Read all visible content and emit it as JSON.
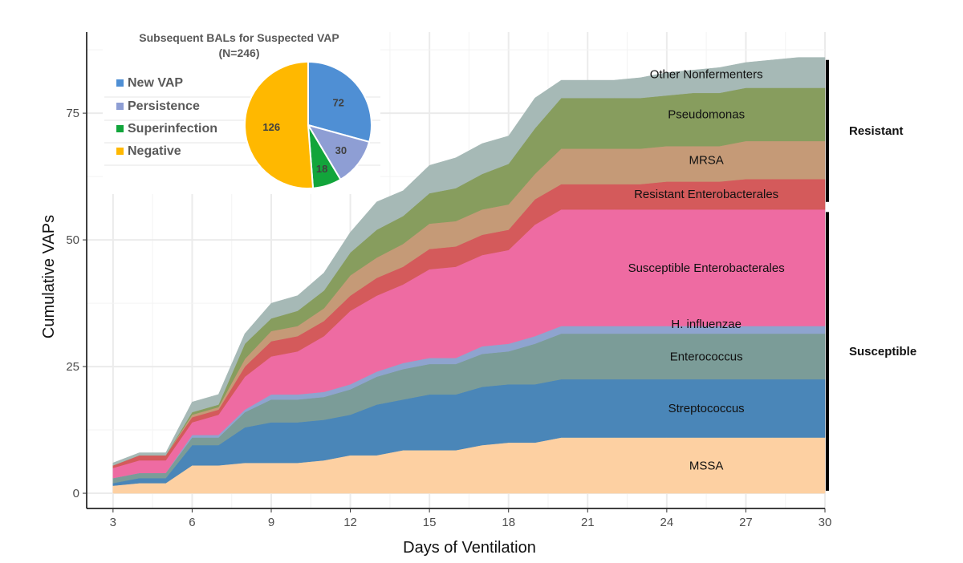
{
  "chart_data": [
    {
      "type": "area",
      "stacked": true,
      "xlabel": "Days of Ventilation",
      "ylabel": "Cumulative VAPs",
      "xlim": [
        2,
        30
      ],
      "ylim": [
        -3,
        91
      ],
      "xticks": [
        3,
        6,
        9,
        12,
        15,
        18,
        21,
        24,
        27,
        30
      ],
      "yticks": [
        0,
        25,
        50,
        75
      ],
      "grid": true,
      "x": [
        3,
        4,
        5,
        6,
        7,
        8,
        9,
        10,
        11,
        12,
        13,
        14,
        15,
        16,
        17,
        18,
        19,
        20,
        21,
        22,
        23,
        24,
        25,
        26,
        27,
        28,
        29,
        30
      ],
      "series": [
        {
          "name": "MSSA",
          "color": "#fdd0a2",
          "values": [
            1.5,
            2,
            2,
            5.5,
            5.5,
            6,
            6,
            6,
            6.5,
            7.5,
            7.5,
            8.5,
            8.5,
            8.5,
            9.5,
            10,
            10,
            11,
            11,
            11,
            11,
            11,
            11,
            11,
            11,
            11,
            11,
            11
          ]
        },
        {
          "name": "Streptococcus",
          "color": "#4a86b8",
          "values": [
            0.5,
            1,
            1,
            4,
            4,
            7,
            8,
            8,
            8,
            8,
            10,
            10,
            11,
            11,
            11.5,
            11.5,
            11.5,
            11.5,
            11.5,
            11.5,
            11.5,
            11.5,
            11.5,
            11.5,
            11.5,
            11.5,
            11.5,
            11.5
          ]
        },
        {
          "name": "Enterococcus",
          "color": "#7b9c98",
          "values": [
            1,
            1,
            1,
            1.5,
            1.5,
            3,
            4.5,
            4.5,
            4.5,
            5,
            5.5,
            6,
            6,
            6,
            6.5,
            6.5,
            8,
            9,
            9,
            9,
            9,
            9,
            9,
            9,
            9,
            9,
            9,
            9
          ]
        },
        {
          "name": "H. influenzae",
          "color": "#8ea4cf",
          "values": [
            0,
            0,
            0,
            0.5,
            0.5,
            0.5,
            1,
            1,
            1,
            1,
            1,
            1.2,
            1.2,
            1.2,
            1.5,
            1.5,
            1.5,
            1.5,
            1.5,
            1.5,
            1.5,
            1.5,
            1.5,
            1.5,
            1.5,
            1.5,
            1.5,
            1.5
          ]
        },
        {
          "name": "Susceptible Enterobacterales",
          "color": "#ee6ba2",
          "values": [
            2,
            2.5,
            2.5,
            2.5,
            4,
            6.5,
            7.5,
            8.5,
            11,
            14.5,
            15,
            15.5,
            17.5,
            18,
            18,
            18.5,
            22,
            23,
            23,
            23,
            23,
            23,
            23,
            23,
            23,
            23,
            23,
            23
          ]
        },
        {
          "name": "Resistant Enterobacterales",
          "color": "#d45a5b",
          "values": [
            0.5,
            1,
            1,
            1,
            1,
            2,
            3,
            3,
            3,
            3,
            3.5,
            3.5,
            4,
            4,
            4,
            4,
            5,
            5,
            5,
            5,
            5,
            5.5,
            5.5,
            5.5,
            6,
            6,
            6,
            6
          ]
        },
        {
          "name": "MRSA",
          "color": "#c59a77",
          "values": [
            0,
            0,
            0,
            0.5,
            0.5,
            1.5,
            2,
            2,
            2.5,
            4,
            4,
            4.5,
            5,
            5,
            5,
            5,
            5,
            7,
            7,
            7,
            7,
            7,
            7,
            7,
            7.5,
            7.5,
            7.5,
            7.5
          ]
        },
        {
          "name": "Pseudomonas",
          "color": "#879d5e",
          "values": [
            0,
            0,
            0,
            0.5,
            0.5,
            3,
            2.5,
            3,
            3.5,
            4.5,
            5.5,
            5.5,
            6,
            6.5,
            7,
            8,
            9,
            10,
            10,
            10,
            10,
            10,
            10.5,
            10.5,
            10.5,
            10.5,
            10.5,
            10.5
          ]
        },
        {
          "name": "Other Nonfermenters",
          "color": "#a6b9b6",
          "values": [
            0.5,
            0.5,
            0.5,
            2,
            2,
            2,
            3,
            3,
            3.5,
            4,
            5.5,
            5,
            5.5,
            6,
            6,
            5.5,
            6,
            3.5,
            3.5,
            3.5,
            4,
            4.5,
            4.5,
            5,
            5,
            5.5,
            6,
            6
          ]
        }
      ],
      "groups": [
        {
          "label": "Resistant",
          "from": 57.5,
          "to": 85.5
        },
        {
          "label": "Susceptible",
          "from": 0.5,
          "to": 55.5
        }
      ]
    },
    {
      "type": "pie",
      "title": "Subsequent BALs for Suspected VAP",
      "subtitle": "(N=246)",
      "slices": [
        {
          "label": "New VAP",
          "value": 72,
          "color": "#4f8fd4"
        },
        {
          "label": "Persistence",
          "value": 30,
          "color": "#8e9ed4"
        },
        {
          "label": "Superinfection",
          "value": 18,
          "color": "#12a53b"
        },
        {
          "label": "Negative",
          "value": 126,
          "color": "#ffb800"
        }
      ]
    }
  ]
}
